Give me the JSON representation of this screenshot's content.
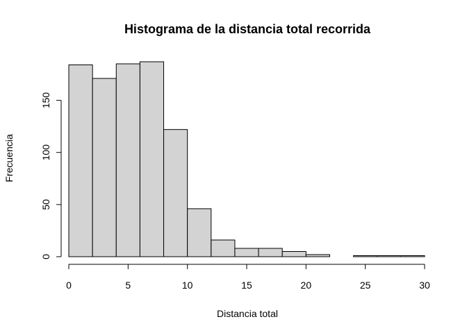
{
  "chart_data": {
    "type": "bar",
    "title": "Histograma de la distancia total recorrida",
    "xlabel": "Distancia total",
    "ylabel": "Frecuencia",
    "bins": [
      {
        "x0": 0,
        "x1": 2,
        "count": 184
      },
      {
        "x0": 2,
        "x1": 4,
        "count": 171
      },
      {
        "x0": 4,
        "x1": 6,
        "count": 185
      },
      {
        "x0": 6,
        "x1": 8,
        "count": 187
      },
      {
        "x0": 8,
        "x1": 10,
        "count": 122
      },
      {
        "x0": 10,
        "x1": 12,
        "count": 46
      },
      {
        "x0": 12,
        "x1": 14,
        "count": 16
      },
      {
        "x0": 14,
        "x1": 16,
        "count": 8
      },
      {
        "x0": 16,
        "x1": 18,
        "count": 8
      },
      {
        "x0": 18,
        "x1": 20,
        "count": 5
      },
      {
        "x0": 20,
        "x1": 22,
        "count": 2
      },
      {
        "x0": 22,
        "x1": 24,
        "count": 0
      },
      {
        "x0": 24,
        "x1": 26,
        "count": 1
      },
      {
        "x0": 26,
        "x1": 28,
        "count": 1
      },
      {
        "x0": 28,
        "x1": 30,
        "count": 1
      }
    ],
    "xlim": [
      0,
      30
    ],
    "ylim": [
      0,
      187
    ],
    "x_ticks": [
      "0",
      "5",
      "10",
      "15",
      "20",
      "25",
      "30"
    ],
    "y_ticks": [
      "0",
      "50",
      "100",
      "150"
    ],
    "bar_fill": "#d3d3d3",
    "bar_border": "#000000",
    "grid": false
  }
}
